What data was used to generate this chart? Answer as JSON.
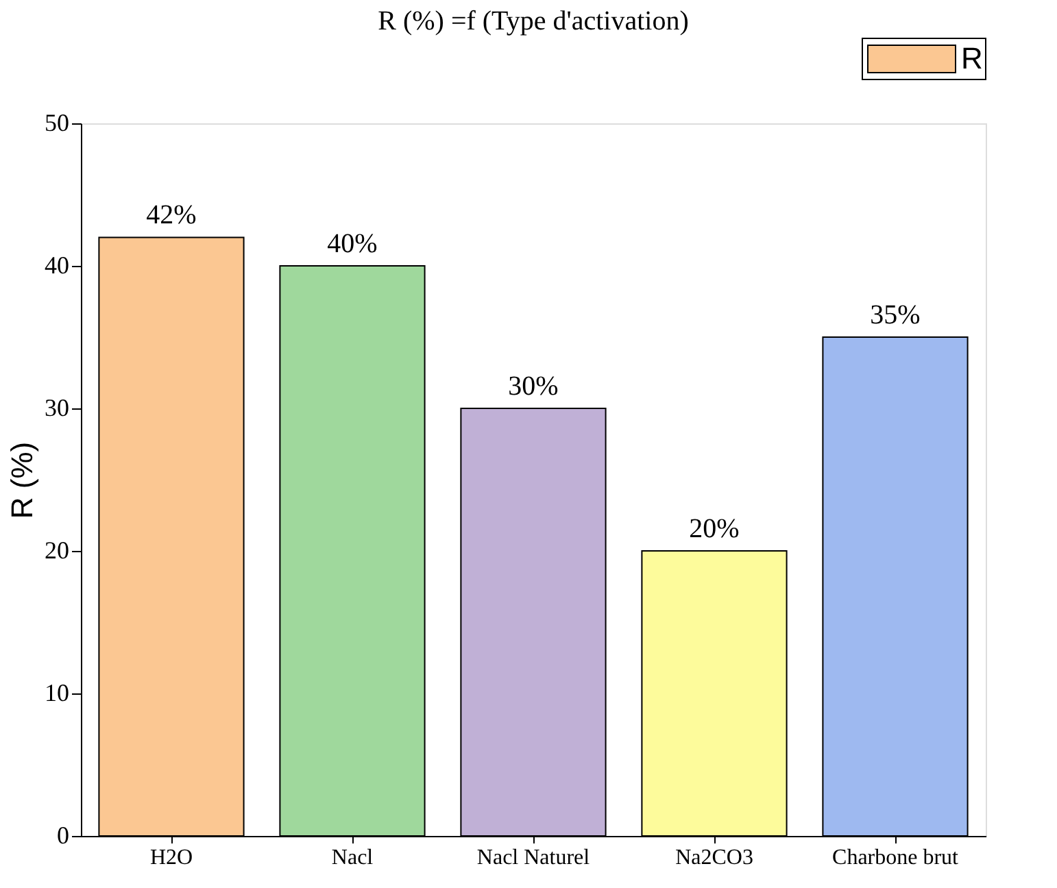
{
  "chart_data": {
    "type": "bar",
    "title": "R (%) =f (Type d'activation)",
    "ylabel": "R (%)",
    "categories": [
      "H2O",
      "Nacl",
      "Nacl Naturel",
      "Na2CO3",
      "Charbone brut"
    ],
    "series": [
      {
        "name": "R",
        "colors": [
          "#fbc792",
          "#9fd89c",
          "#c0b0d6",
          "#fdfb9b",
          "#9eb9f0"
        ],
        "values": [
          42,
          40,
          30,
          20,
          35
        ],
        "value_labels": [
          "42%",
          "40%",
          "30%",
          "20%",
          "35%"
        ]
      }
    ],
    "ylim": [
      0,
      50
    ],
    "yticks": [
      0,
      10,
      20,
      30,
      40,
      50
    ],
    "grid": false,
    "legend": "top right"
  }
}
